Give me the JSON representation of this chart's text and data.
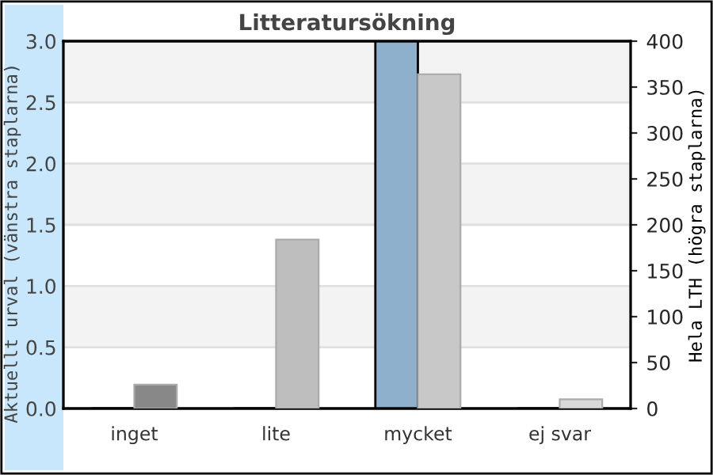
{
  "chart_data": {
    "type": "bar",
    "title": "Litteratursökning",
    "ylabel": "Aktuellt urval (vänstra staplarna)",
    "y2label": "Hela LTH (högra staplarna)",
    "categories": [
      "inget",
      "lite",
      "mycket",
      "ej svar"
    ],
    "series": [
      {
        "values": [
          0,
          0,
          3.0,
          0
        ],
        "colors": [
          "#8eb0cc",
          "#8eb0cc",
          "#8eb0cc",
          "#8eb0cc"
        ]
      },
      {
        "values": [
          26,
          184,
          364,
          10
        ],
        "colors": [
          "#888888",
          "#bebebe",
          "#c8c8c8",
          "#d8d8d8"
        ],
        "axis": "y2"
      }
    ],
    "ylim": [
      0,
      3.0
    ],
    "yticks": [
      {
        "value": 0,
        "label": "0.0"
      },
      0.5,
      {
        "value": 1,
        "label": "1.0"
      },
      1.5,
      {
        "value": 2,
        "label": "2.0"
      },
      2.5,
      {
        "value": 3,
        "label": "3.0"
      }
    ],
    "y2lim": [
      0,
      400
    ],
    "y2ticks": [
      0,
      50,
      100,
      150,
      200,
      250,
      300,
      350,
      400
    ],
    "grid": "y"
  }
}
